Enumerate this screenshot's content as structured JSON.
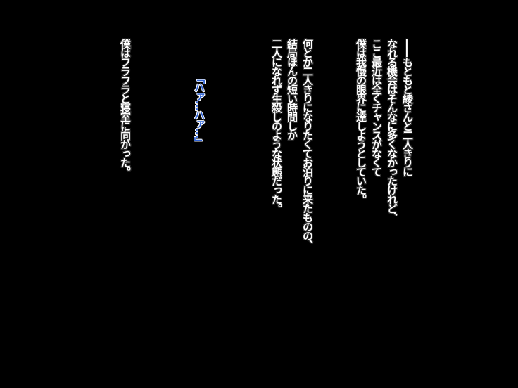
{
  "narration": {
    "paragraph1": [
      "——もともと綾さんと二人きりに",
      "なれる機会はそんなに多くなかったけれど、",
      "ここ最近は全くチャンスがなくて",
      "僕は我慢の限界に達しようとしていた。"
    ],
    "paragraph2": [
      "何とか二人きりになりたくてお泊りに来たものの、",
      "結局ほんの短い時間しか",
      "二人になれず生殺しのような状態だった。"
    ],
    "voice": "「ハァ…ハァ…」",
    "paragraph3": "僕はフラフラと寝室に向かった。"
  },
  "colors": {
    "background": "#000000",
    "text": "#ffffff",
    "voice": "#2f63d6"
  }
}
